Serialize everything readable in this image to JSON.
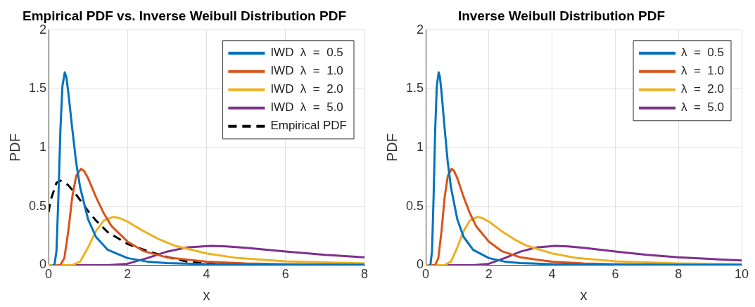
{
  "chart_data": [
    {
      "type": "line",
      "title": "Empirical PDF vs. Inverse Weibull Distribution PDF",
      "xlabel": "x",
      "ylabel": "PDF",
      "xlim": [
        0,
        8
      ],
      "xticks": [
        0,
        2,
        4,
        6,
        8
      ],
      "ylim": [
        0,
        2
      ],
      "yticks": [
        0,
        0.5,
        1,
        1.5,
        2
      ],
      "grid": true,
      "legend": "top right",
      "marker": "none",
      "series": [
        {
          "name": "IWD  λ  =  0.5",
          "color": "#0072bd",
          "x": [
            0.1,
            0.15,
            0.2,
            0.25,
            0.3,
            0.35,
            0.41,
            0.45,
            0.5,
            0.6,
            0.7,
            0.8,
            1.0,
            1.2,
            1.5,
            2,
            2.5,
            3,
            4,
            5,
            6,
            8
          ],
          "values": [
            0,
            0.002,
            0.12,
            0.59,
            1.15,
            1.52,
            1.64,
            1.6,
            1.47,
            1.16,
            0.87,
            0.66,
            0.39,
            0.24,
            0.13,
            0.06,
            0.03,
            0.018,
            0.008,
            0.004,
            0.002,
            0.001
          ]
        },
        {
          "name": "IWD  λ  =  1.0",
          "color": "#d95319",
          "x": [
            0.2,
            0.3,
            0.4,
            0.5,
            0.6,
            0.7,
            0.82,
            0.9,
            1.0,
            1.2,
            1.4,
            1.6,
            2,
            2.4,
            3,
            4,
            5,
            6,
            8
          ],
          "values": [
            0,
            0.001,
            0.06,
            0.29,
            0.58,
            0.76,
            0.82,
            0.8,
            0.74,
            0.58,
            0.44,
            0.33,
            0.2,
            0.12,
            0.066,
            0.029,
            0.015,
            0.009,
            0.004
          ]
        },
        {
          "name": "IWD  λ  =  2.0",
          "color": "#edb120",
          "x": [
            0,
            0.6,
            0.8,
            1.0,
            1.2,
            1.4,
            1.63,
            1.8,
            2,
            2.4,
            2.8,
            3.2,
            4,
            4.8,
            6,
            8
          ],
          "values": [
            0,
            0,
            0.03,
            0.15,
            0.29,
            0.38,
            0.41,
            0.4,
            0.37,
            0.29,
            0.22,
            0.165,
            0.1,
            0.06,
            0.033,
            0.015
          ]
        },
        {
          "name": "IWD  λ  =  5.0",
          "color": "#7e2f8e",
          "x": [
            0,
            1.5,
            2,
            2.5,
            3,
            3.5,
            4.1,
            4.5,
            5,
            6,
            7,
            8
          ],
          "values": [
            0,
            0,
            0.012,
            0.06,
            0.115,
            0.15,
            0.164,
            0.16,
            0.147,
            0.116,
            0.087,
            0.066
          ]
        },
        {
          "name": "Empirical PDF",
          "color": "#000000",
          "line_style": "dashed",
          "x": [
            0,
            0.05,
            0.2,
            0.3,
            0.5,
            0.7,
            1.0,
            1.2,
            1.5,
            2,
            2.5,
            3,
            3.5,
            4,
            5,
            6,
            8
          ],
          "values": [
            0.45,
            0.55,
            0.7,
            0.72,
            0.68,
            0.6,
            0.46,
            0.38,
            0.28,
            0.18,
            0.12,
            0.07,
            0.03,
            0.015,
            0.005,
            0.003,
            0.002
          ]
        }
      ]
    },
    {
      "type": "line",
      "title": "Inverse Weibull Distribution PDF",
      "xlabel": "x",
      "ylabel": "PDF",
      "xlim": [
        0,
        10
      ],
      "xticks": [
        0,
        2,
        4,
        6,
        8,
        10
      ],
      "ylim": [
        0,
        2
      ],
      "yticks": [
        0,
        0.5,
        1,
        1.5,
        2
      ],
      "grid": true,
      "legend": "top right",
      "marker": "none",
      "series": [
        {
          "name": "λ  =  0.5",
          "color": "#0072bd",
          "x": [
            0.1,
            0.15,
            0.2,
            0.25,
            0.3,
            0.35,
            0.41,
            0.45,
            0.5,
            0.6,
            0.7,
            0.8,
            1.0,
            1.2,
            1.5,
            2,
            2.5,
            3,
            4,
            5,
            6,
            8,
            10
          ],
          "values": [
            0,
            0.002,
            0.12,
            0.59,
            1.15,
            1.52,
            1.64,
            1.6,
            1.47,
            1.16,
            0.87,
            0.66,
            0.39,
            0.24,
            0.13,
            0.06,
            0.03,
            0.018,
            0.008,
            0.004,
            0.002,
            0.001,
            0.001
          ]
        },
        {
          "name": "λ  =  1.0",
          "color": "#d95319",
          "x": [
            0.2,
            0.3,
            0.4,
            0.5,
            0.6,
            0.7,
            0.82,
            0.9,
            1.0,
            1.2,
            1.4,
            1.6,
            2,
            2.4,
            3,
            4,
            5,
            6,
            8,
            10
          ],
          "values": [
            0,
            0.001,
            0.06,
            0.29,
            0.58,
            0.76,
            0.82,
            0.8,
            0.74,
            0.58,
            0.44,
            0.33,
            0.2,
            0.12,
            0.066,
            0.029,
            0.015,
            0.009,
            0.004,
            0.002
          ]
        },
        {
          "name": "λ  =  2.0",
          "color": "#edb120",
          "x": [
            0,
            0.6,
            0.8,
            1.0,
            1.2,
            1.4,
            1.63,
            1.8,
            2,
            2.4,
            2.8,
            3.2,
            4,
            4.8,
            6,
            8,
            10
          ],
          "values": [
            0,
            0,
            0.03,
            0.15,
            0.29,
            0.38,
            0.41,
            0.4,
            0.37,
            0.29,
            0.22,
            0.165,
            0.1,
            0.06,
            0.033,
            0.015,
            0.008
          ]
        },
        {
          "name": "λ  =  5.0",
          "color": "#7e2f8e",
          "x": [
            0,
            1.5,
            2,
            2.5,
            3,
            3.5,
            4.1,
            4.5,
            5,
            6,
            7,
            8,
            10
          ],
          "values": [
            0,
            0,
            0.012,
            0.06,
            0.115,
            0.15,
            0.164,
            0.16,
            0.147,
            0.116,
            0.087,
            0.066,
            0.039
          ]
        }
      ]
    }
  ]
}
